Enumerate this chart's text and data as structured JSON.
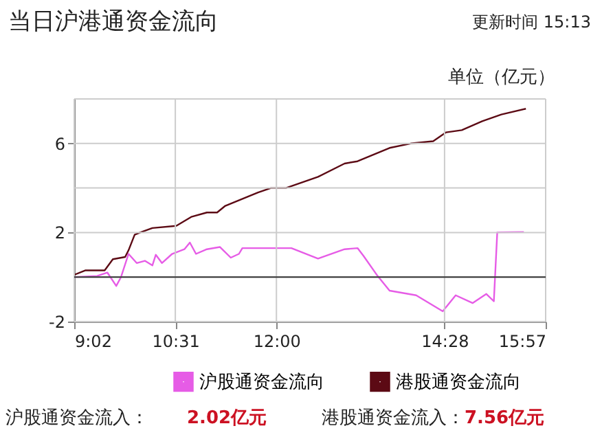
{
  "chart_data": {
    "type": "line",
    "title": "当日沪港通资金流向",
    "subtitle": "更新时间 15:13",
    "ylabel": "单位（亿元）",
    "xlim": [
      9.0333,
      15.95
    ],
    "xticks": [
      {
        "value": 9.0333,
        "label": "9:02"
      },
      {
        "value": 10.5167,
        "label": "10:31"
      },
      {
        "value": 12,
        "label": "12:00"
      },
      {
        "value": 14.4667,
        "label": "14:28"
      },
      {
        "value": 15.95,
        "label": "15:57"
      }
    ],
    "ylim": [
      -2,
      8
    ],
    "yticks": [
      -2,
      {
        "value": 0,
        "label": null
      },
      2,
      {
        "value": 4,
        "label": null
      },
      6,
      {
        "value": 8,
        "label": null
      }
    ],
    "grid": true,
    "legend": "bottom",
    "marker": "none",
    "line_style": "solid",
    "ref_lines": [
      {
        "axis": "y",
        "value": 0,
        "label": null,
        "color": "#333333"
      }
    ],
    "series": [
      {
        "name": "沪股通资金流向",
        "color": "#e65ce6",
        "x": [
          9.0333,
          9.37,
          9.52,
          9.65,
          9.72,
          9.83,
          9.95,
          10.07,
          10.18,
          10.23,
          10.32,
          10.47,
          10.65,
          10.73,
          10.82,
          10.98,
          11.17,
          11.33,
          11.45,
          11.5,
          12.22,
          12.61,
          13.0,
          13.19,
          13.28,
          13.47,
          13.66,
          14.05,
          14.44,
          14.63,
          14.88,
          15.08,
          15.19,
          15.24,
          15.63
        ],
        "values": [
          0.0,
          0.05,
          0.2,
          -0.4,
          0.0,
          1.04,
          0.63,
          0.73,
          0.52,
          1.0,
          0.63,
          1.04,
          1.25,
          1.55,
          1.04,
          1.25,
          1.35,
          0.87,
          1.04,
          1.3,
          1.3,
          0.83,
          1.25,
          1.3,
          0.94,
          0.11,
          -0.61,
          -0.82,
          -1.54,
          -0.82,
          -1.17,
          -0.76,
          -1.09,
          2.01,
          2.02
        ]
      },
      {
        "name": "港股通资金流向",
        "color": "#5c0a14",
        "x": [
          9.0333,
          9.2,
          9.48,
          9.6,
          9.78,
          9.83,
          9.92,
          10.0,
          10.18,
          10.53,
          10.75,
          10.98,
          11.13,
          11.25,
          11.57,
          11.73,
          11.92,
          12.14,
          12.61,
          13.0,
          13.19,
          13.66,
          13.97,
          14.3,
          14.49,
          14.72,
          15.02,
          15.3,
          15.66
        ],
        "values": [
          0.1,
          0.3,
          0.3,
          0.8,
          0.9,
          1.2,
          1.9,
          2.0,
          2.2,
          2.3,
          2.7,
          2.9,
          2.9,
          3.2,
          3.6,
          3.8,
          4.0,
          4.0,
          4.5,
          5.1,
          5.2,
          5.8,
          6.0,
          6.1,
          6.5,
          6.6,
          7.0,
          7.3,
          7.56
        ]
      }
    ],
    "annotations": [
      "沪股通资金流入：",
      "2.02亿元",
      "港股通资金流入：",
      "7.56亿元"
    ]
  }
}
